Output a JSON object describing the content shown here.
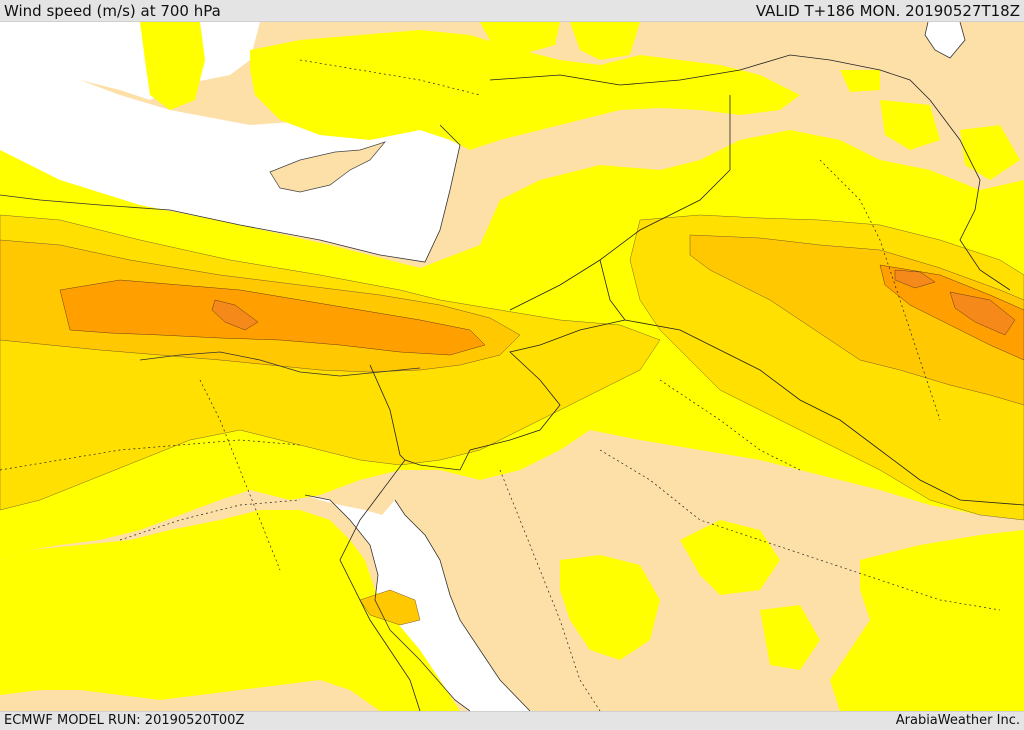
{
  "header": {
    "title": "Wind speed (m/s) at 700 hPa",
    "valid": "VALID T+186 MON. 20190527T18Z"
  },
  "footer": {
    "model_run": "ECMWF MODEL RUN: 20190520T00Z",
    "credit": "ArabiaWeather Inc."
  },
  "map": {
    "variable": "wind speed",
    "level": "700 hPa",
    "units": "m/s",
    "colors": {
      "sea": "#ffffff",
      "band_low": "#fde0a8",
      "band_1": "#ffff00",
      "band_2": "#ffe000",
      "band_3": "#ffc800",
      "band_4": "#ffa000",
      "band_5": "#f58a1a"
    }
  }
}
